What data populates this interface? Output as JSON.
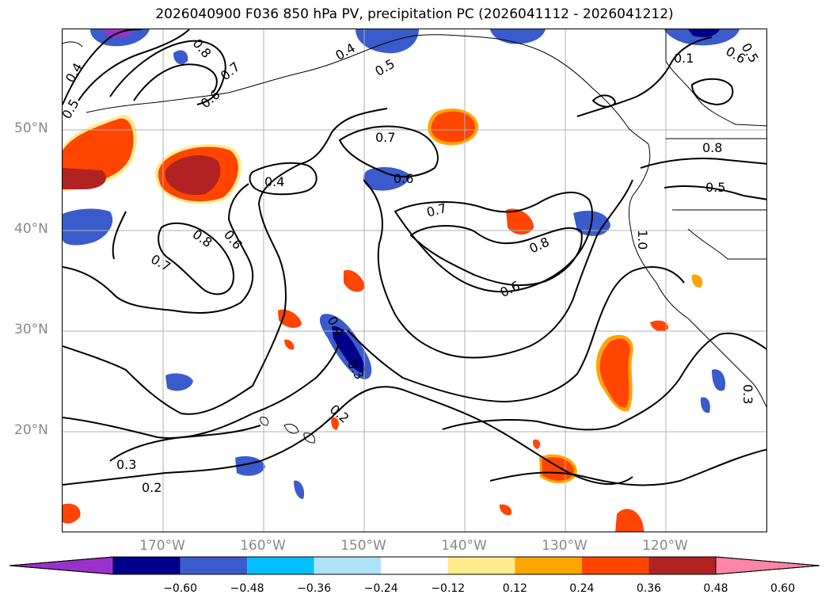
{
  "title": "2026040900 F036 850 hPa PV, precipitation PC (2026041112 - 2026041212)",
  "lat_labels": [
    "50°N",
    "40°N",
    "30°N",
    "20°N"
  ],
  "lon_labels": [
    "170°W",
    "160°W",
    "150°W",
    "140°W",
    "130°W",
    "120°W"
  ],
  "contour_labels": [
    "0.4",
    "0.5",
    "0.8",
    "0.7",
    "0.6",
    "0.4",
    "0.5",
    "0.7",
    "0.6",
    "0.4",
    "0.8",
    "0.6",
    "0.7",
    "0.7",
    "0.8",
    "0.6",
    "0.4",
    "0.3",
    "0.2",
    "0.3",
    "0.2",
    "0.5",
    "0.8",
    "1.0",
    "0.3",
    "0.1",
    "0.6",
    "0.5"
  ],
  "colorbar": {
    "colors": [
      "#9932cc",
      "#00008b",
      "#3a5bcc",
      "#00bfff",
      "#aee3f7",
      "#ffffff",
      "#ffea8c",
      "#ffa500",
      "#ff4500",
      "#b22222",
      "#ff85a8"
    ],
    "ticks": [
      "−0.60",
      "−0.48",
      "−0.36",
      "−0.24",
      "−0.12",
      "0.12",
      "0.24",
      "0.36",
      "0.48",
      "0.60"
    ]
  },
  "colors": {
    "grid": "#b0b0b0",
    "contour": "#000000",
    "axis_label": "#888888"
  }
}
